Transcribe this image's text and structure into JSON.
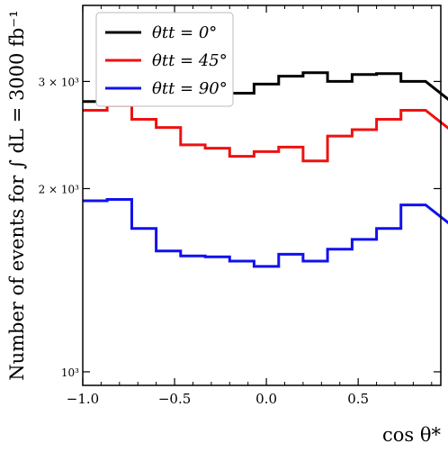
{
  "chart_data": {
    "type": "line",
    "step": true,
    "xlabel": "cos θ*",
    "ylabel": "Number of events for ∫ dL = 3000 fb⁻¹",
    "y_scale": "log",
    "xlim": [
      -1.0,
      0.95
    ],
    "ylim": [
      950,
      4000
    ],
    "x_ticks": [
      -1.0,
      -0.5,
      0.0,
      0.5
    ],
    "x_tick_labels": [
      "−1.0",
      "−0.5",
      "0.0",
      "0.5"
    ],
    "y_ticks": [
      1000,
      2000,
      3000
    ],
    "y_tick_labels": [
      "10³",
      "2 × 10³",
      "3 × 10³"
    ],
    "x_edges": [
      -1.0,
      -0.867,
      -0.733,
      -0.6,
      -0.467,
      -0.333,
      -0.2,
      -0.067,
      0.067,
      0.2,
      0.333,
      0.467,
      0.6,
      0.733,
      0.867
    ],
    "series": [
      {
        "name": "θtt = 0°",
        "color": "#000000",
        "values": [
          2780,
          3030,
          3080,
          3050,
          2990,
          2990,
          2870,
          2970,
          3060,
          3100,
          3000,
          3080,
          3090,
          3000
        ]
      },
      {
        "name": "θtt = 45°",
        "color": "#ee1111",
        "values": [
          2690,
          2740,
          2600,
          2520,
          2360,
          2330,
          2260,
          2300,
          2340,
          2220,
          2440,
          2500,
          2600,
          2690
        ]
      },
      {
        "name": "θtt = 90°",
        "color": "#1111ee",
        "values": [
          1910,
          1920,
          1720,
          1580,
          1550,
          1545,
          1520,
          1490,
          1560,
          1520,
          1590,
          1650,
          1720,
          1880
        ]
      }
    ],
    "legend": {
      "position": "top-left",
      "items": [
        "θtt = 0°",
        "θtt = 45°",
        "θtt = 90°"
      ]
    },
    "grid": false
  }
}
